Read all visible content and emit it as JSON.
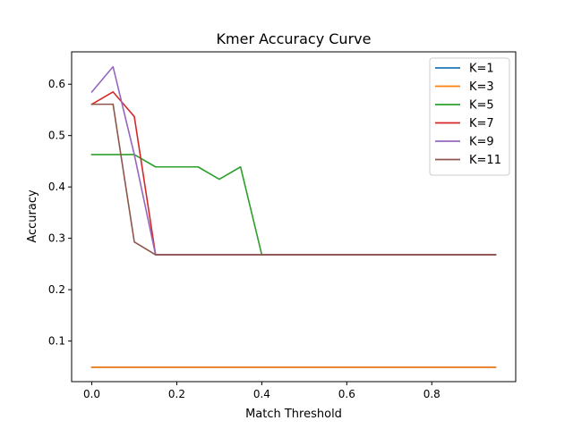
{
  "chart_data": {
    "type": "line",
    "title": "Kmer Accuracy Curve",
    "xlabel": "Match Threshold",
    "ylabel": "Accuracy",
    "xlim": [
      -0.0475,
      0.9975
    ],
    "ylim": [
      0.021,
      0.663
    ],
    "xticks": [
      0.0,
      0.2,
      0.4,
      0.6,
      0.8
    ],
    "xtick_labels": [
      "0.0",
      "0.2",
      "0.4",
      "0.6",
      "0.8"
    ],
    "yticks": [
      0.1,
      0.2,
      0.3,
      0.4,
      0.5,
      0.6
    ],
    "ytick_labels": [
      "0.1",
      "0.2",
      "0.3",
      "0.4",
      "0.5",
      "0.6"
    ],
    "grid": false,
    "legend_position": "top-right",
    "x": [
      0.0,
      0.05,
      0.1,
      0.15,
      0.2,
      0.25,
      0.3,
      0.35,
      0.4,
      0.45,
      0.5,
      0.55,
      0.6,
      0.65,
      0.7,
      0.75,
      0.8,
      0.85,
      0.9,
      0.95
    ],
    "series": [
      {
        "name": "K=1",
        "color": "#1f77b4",
        "values": [
          0.049,
          0.049,
          0.049,
          0.049,
          0.049,
          0.049,
          0.049,
          0.049,
          0.049,
          0.049,
          0.049,
          0.049,
          0.049,
          0.049,
          0.049,
          0.049,
          0.049,
          0.049,
          0.049,
          0.049
        ]
      },
      {
        "name": "K=3",
        "color": "#ff7f0e",
        "values": [
          0.049,
          0.049,
          0.049,
          0.049,
          0.049,
          0.049,
          0.049,
          0.049,
          0.049,
          0.049,
          0.049,
          0.049,
          0.049,
          0.049,
          0.049,
          0.049,
          0.049,
          0.049,
          0.049,
          0.049
        ]
      },
      {
        "name": "K=5",
        "color": "#2ca02c",
        "values": [
          0.463,
          0.463,
          0.463,
          0.439,
          0.439,
          0.439,
          0.415,
          0.439,
          0.268,
          0.268,
          0.268,
          0.268,
          0.268,
          0.268,
          0.268,
          0.268,
          0.268,
          0.268,
          0.268,
          0.268
        ]
      },
      {
        "name": "K=7",
        "color": "#d62728",
        "values": [
          0.561,
          0.585,
          0.537,
          0.268,
          0.268,
          0.268,
          0.268,
          0.268,
          0.268,
          0.268,
          0.268,
          0.268,
          0.268,
          0.268,
          0.268,
          0.268,
          0.268,
          0.268,
          0.268,
          0.268
        ]
      },
      {
        "name": "K=9",
        "color": "#9467bd",
        "values": [
          0.585,
          0.634,
          0.463,
          0.268,
          0.268,
          0.268,
          0.268,
          0.268,
          0.268,
          0.268,
          0.268,
          0.268,
          0.268,
          0.268,
          0.268,
          0.268,
          0.268,
          0.268,
          0.268,
          0.268
        ]
      },
      {
        "name": "K=11",
        "color": "#8c564b",
        "values": [
          0.561,
          0.561,
          0.293,
          0.268,
          0.268,
          0.268,
          0.268,
          0.268,
          0.268,
          0.268,
          0.268,
          0.268,
          0.268,
          0.268,
          0.268,
          0.268,
          0.268,
          0.268,
          0.268,
          0.268
        ]
      }
    ]
  }
}
